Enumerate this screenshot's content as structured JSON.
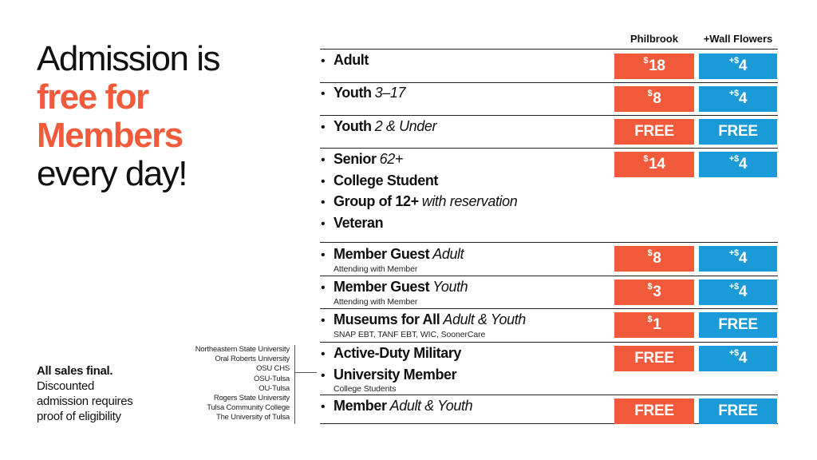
{
  "headline": {
    "line1": "Admission is",
    "line2": "free for",
    "line3": "Members",
    "line4": "every day!"
  },
  "note": {
    "bold": "All sales final.",
    "line1": "Discounted",
    "line2": "admission requires",
    "line3": "proof of eligibility"
  },
  "schools": [
    "Northeastern State University",
    "Oral Roberts University",
    "OSU CHS",
    "OSU-Tulsa",
    "OU-Tulsa",
    "Rogers State University",
    "Tulsa Community College",
    "The University of Tulsa"
  ],
  "columns": {
    "philbrook": "Philbrook",
    "wallflowers": "+Wall Flowers"
  },
  "bullet": "•",
  "colors": {
    "red": "#f15a3a",
    "blue": "#1a9ad6"
  },
  "rows": [
    {
      "items": [
        {
          "label": "Adult",
          "sub": ""
        }
      ],
      "note": "",
      "philbrook": {
        "prefix": "$",
        "value": "18"
      },
      "wallflowers": {
        "prefix": "+$",
        "value": "4"
      }
    },
    {
      "items": [
        {
          "label": "Youth",
          "sub": "3–17"
        }
      ],
      "note": "",
      "philbrook": {
        "prefix": "$",
        "value": "8"
      },
      "wallflowers": {
        "prefix": "+$",
        "value": "4"
      }
    },
    {
      "items": [
        {
          "label": "Youth",
          "sub": "2 & Under"
        }
      ],
      "note": "",
      "philbrook": {
        "prefix": "",
        "value": "FREE"
      },
      "wallflowers": {
        "prefix": "",
        "value": "FREE"
      }
    },
    {
      "items": [
        {
          "label": "Senior",
          "sub": "62+"
        },
        {
          "label": "College Student",
          "sub": ""
        },
        {
          "label": "Group of 12+",
          "sub": "with reservation"
        },
        {
          "label": "Veteran",
          "sub": ""
        }
      ],
      "note": "",
      "philbrook": {
        "prefix": "$",
        "value": "14"
      },
      "wallflowers": {
        "prefix": "+$",
        "value": "4"
      }
    },
    {
      "items": [
        {
          "label": "Member Guest",
          "sub": "Adult"
        }
      ],
      "note": "Attending with Member",
      "philbrook": {
        "prefix": "$",
        "value": "8"
      },
      "wallflowers": {
        "prefix": "+$",
        "value": "4"
      }
    },
    {
      "items": [
        {
          "label": "Member Guest",
          "sub": "Youth"
        }
      ],
      "note": "Attending with Member",
      "philbrook": {
        "prefix": "$",
        "value": "3"
      },
      "wallflowers": {
        "prefix": "+$",
        "value": "4"
      }
    },
    {
      "items": [
        {
          "label": "Museums for All",
          "sub": "Adult & Youth"
        }
      ],
      "note": "SNAP EBT, TANF EBT, WIC, SoonerCare",
      "philbrook": {
        "prefix": "$",
        "value": "1"
      },
      "wallflowers": {
        "prefix": "",
        "value": "FREE"
      }
    },
    {
      "items": [
        {
          "label": "Active-Duty Military",
          "sub": ""
        },
        {
          "label": "University Member",
          "sub": ""
        }
      ],
      "note": "College Students",
      "philbrook": {
        "prefix": "",
        "value": "FREE"
      },
      "wallflowers": {
        "prefix": "+$",
        "value": "4"
      }
    },
    {
      "items": [
        {
          "label": "Member",
          "sub": "Adult & Youth"
        }
      ],
      "note": "",
      "philbrook": {
        "prefix": "",
        "value": "FREE"
      },
      "wallflowers": {
        "prefix": "",
        "value": "FREE"
      }
    }
  ]
}
